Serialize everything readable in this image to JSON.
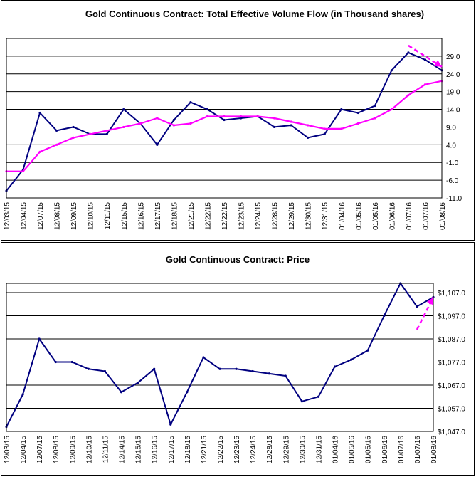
{
  "chart_data": [
    {
      "type": "line",
      "title": "Gold Continuous Contract: Total Effective Volume Flow (in Thousand shares)",
      "ylim": [
        -11,
        34
      ],
      "y_ticks": [
        29.0,
        24.0,
        19.0,
        14.0,
        9.0,
        4.0,
        -1.0,
        -6.0,
        -11.0
      ],
      "y_tick_labels": [
        "29.0",
        "24.0",
        "19.0",
        "14.0",
        "9.0",
        "4.0",
        "-1.0",
        "-6.0",
        "-11.0"
      ],
      "categories": [
        "12/03/15",
        "12/04/15",
        "12/07/15",
        "12/08/15",
        "12/09/15",
        "12/10/15",
        "12/11/15",
        "12/15/15",
        "12/16/15",
        "12/17/15",
        "12/18/15",
        "12/21/15",
        "12/22/15",
        "12/22/15",
        "12/23/15",
        "12/24/15",
        "12/28/15",
        "12/29/15",
        "12/30/15",
        "12/31/15",
        "01/04/16",
        "01/05/16",
        "01/05/16",
        "01/06/16",
        "01/07/16",
        "01/07/16",
        "01/08/16"
      ],
      "series": [
        {
          "color": "#000080",
          "values": [
            -9,
            -3,
            13,
            8,
            9,
            7,
            7,
            14,
            10,
            4,
            11,
            16,
            14,
            11,
            11.5,
            12,
            9,
            9.5,
            6,
            7,
            14,
            13,
            15,
            25,
            30,
            28,
            25
          ]
        },
        {
          "color": "#ff00ff",
          "values": [
            -3.5,
            -3.5,
            2,
            4,
            6,
            7,
            8,
            9,
            10,
            11.5,
            9.5,
            10,
            12,
            12,
            12,
            12,
            11.5,
            10.5,
            9.5,
            8.5,
            8.5,
            10,
            11.5,
            14,
            18,
            21,
            22
          ]
        }
      ],
      "annotation": {
        "type": "arrow",
        "color": "#ff00ff",
        "style": "dashed",
        "from_x_index": 24,
        "from_y": 32,
        "to_x_index": 26,
        "to_y": 26
      }
    },
    {
      "type": "line",
      "title": "Gold Continuous Contract: Price",
      "ylim": [
        1047,
        1111
      ],
      "y_ticks": [
        1107,
        1097,
        1087,
        1077,
        1067,
        1057,
        1047
      ],
      "y_tick_labels": [
        "$1,107.0",
        "$1,097.0",
        "$1,087.0",
        "$1,077.0",
        "$1,067.0",
        "$1,057.0",
        "$1,047.0"
      ],
      "categories": [
        "12/03/15",
        "12/04/15",
        "12/07/15",
        "12/08/15",
        "12/09/15",
        "12/10/15",
        "12/11/15",
        "12/14/15",
        "12/15/15",
        "12/16/15",
        "12/17/15",
        "12/18/15",
        "12/21/15",
        "12/22/15",
        "12/23/15",
        "12/24/15",
        "12/28/15",
        "12/29/15",
        "12/30/15",
        "12/31/15",
        "01/04/16",
        "01/05/16",
        "01/05/16",
        "01/06/16",
        "01/07/16",
        "01/07/16",
        "01/08/16"
      ],
      "series": [
        {
          "color": "#000080",
          "values": [
            1049,
            1063,
            1087,
            1077,
            1077,
            1074,
            1073,
            1064,
            1068,
            1074,
            1050,
            1064,
            1079,
            1074,
            1074,
            1073,
            1072,
            1071,
            1060,
            1062,
            1075,
            1078,
            1082,
            1097,
            1111,
            1101,
            1105
          ]
        }
      ],
      "annotation": {
        "type": "arrow",
        "color": "#ff00ff",
        "style": "dashed",
        "from_x_index": 25,
        "from_y": 1091,
        "to_x_index": 26,
        "to_y": 1105
      }
    }
  ]
}
